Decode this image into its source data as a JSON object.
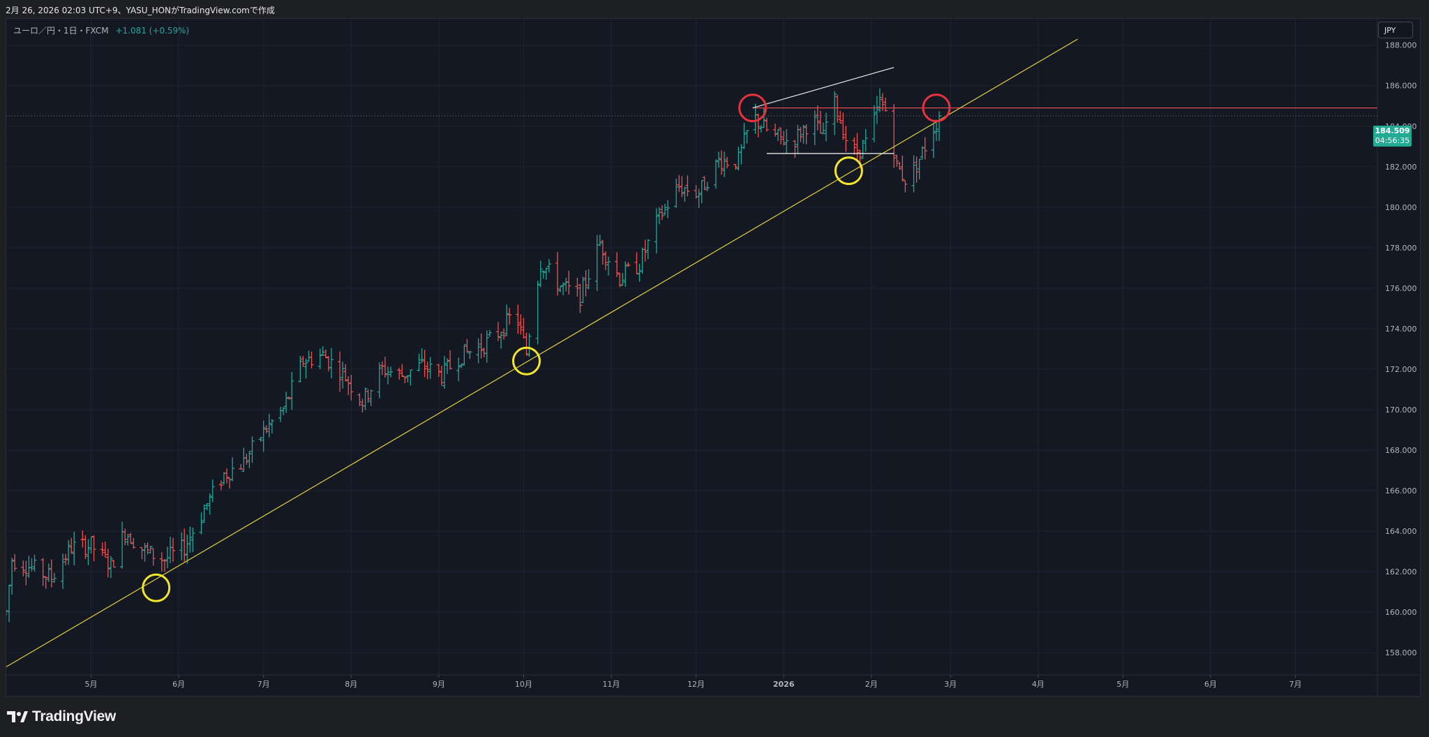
{
  "header": {
    "caption": "2月 26, 2026 02:03 UTC+9、YASU_HONがTradingView.comで作成"
  },
  "legend": {
    "symbol": "ユーロ／円・1日・FXCM",
    "change": "+1.081 (+0.59%)"
  },
  "toolbar": {
    "currency_label": "JPY"
  },
  "last_price": {
    "value": "184.509",
    "countdown": "04:56:35"
  },
  "brand": {
    "name": "TradingView"
  },
  "colors": {
    "background": "#141823",
    "up": "#26a69a",
    "down": "#ef5350",
    "trendline": "#e3d23b",
    "marker_red": "#e8323c",
    "marker_yellow": "#f2e52a",
    "resistance": "#e04a52"
  },
  "chart_data": {
    "type": "candlestick",
    "title": "",
    "timeframe": "1日",
    "y_axis": {
      "side": "right",
      "range": [
        156.9,
        189.3
      ],
      "ticks": [
        "188.000",
        "186.000",
        "184.000",
        "182.000",
        "180.000",
        "178.000",
        "176.000",
        "174.000",
        "172.000",
        "170.000",
        "168.000",
        "166.000",
        "164.000",
        "162.000",
        "160.000",
        "158.000"
      ]
    },
    "x_axis": {
      "range": [
        "2025-04-01",
        "2026-07-30"
      ],
      "ticks": [
        {
          "label": "5月",
          "date": "2025-05-01"
        },
        {
          "label": "6月",
          "date": "2025-06-01"
        },
        {
          "label": "7月",
          "date": "2025-07-01"
        },
        {
          "label": "8月",
          "date": "2025-08-01"
        },
        {
          "label": "9月",
          "date": "2025-09-01"
        },
        {
          "label": "10月",
          "date": "2025-10-01"
        },
        {
          "label": "11月",
          "date": "2025-11-01"
        },
        {
          "label": "12月",
          "date": "2025-12-01"
        },
        {
          "label": "2026",
          "date": "2026-01-01"
        },
        {
          "label": "2月",
          "date": "2026-02-01"
        },
        {
          "label": "3月",
          "date": "2026-03-01"
        },
        {
          "label": "4月",
          "date": "2026-04-01"
        },
        {
          "label": "5月",
          "date": "2026-05-01"
        },
        {
          "label": "6月",
          "date": "2026-06-01"
        },
        {
          "label": "7月",
          "date": "2026-07-01"
        }
      ]
    },
    "grid": true,
    "price_path": [
      [
        "2025-04-01",
        160.0
      ],
      [
        "2025-04-03",
        162.6
      ],
      [
        "2025-04-10",
        162.2
      ],
      [
        "2025-04-17",
        161.7
      ],
      [
        "2025-04-24",
        163.2
      ],
      [
        "2025-05-01",
        163.3
      ],
      [
        "2025-05-08",
        162.3
      ],
      [
        "2025-05-13",
        164.0
      ],
      [
        "2025-05-20",
        163.0
      ],
      [
        "2025-05-27",
        162.6
      ],
      [
        "2025-06-03",
        163.2
      ],
      [
        "2025-06-10",
        165.1
      ],
      [
        "2025-06-17",
        166.8
      ],
      [
        "2025-06-24",
        167.4
      ],
      [
        "2025-07-01",
        168.9
      ],
      [
        "2025-07-08",
        170.0
      ],
      [
        "2025-07-15",
        172.4
      ],
      [
        "2025-07-22",
        172.7
      ],
      [
        "2025-07-29",
        171.8
      ],
      [
        "2025-08-05",
        170.4
      ],
      [
        "2025-08-12",
        172.0
      ],
      [
        "2025-08-19",
        171.7
      ],
      [
        "2025-08-26",
        172.2
      ],
      [
        "2025-09-02",
        171.7
      ],
      [
        "2025-09-09",
        172.7
      ],
      [
        "2025-09-16",
        173.1
      ],
      [
        "2025-09-23",
        173.9
      ],
      [
        "2025-09-28",
        174.9
      ],
      [
        "2025-10-02",
        172.8
      ],
      [
        "2025-10-04",
        174.9
      ],
      [
        "2025-10-07",
        177.3
      ],
      [
        "2025-10-14",
        176.1
      ],
      [
        "2025-10-21",
        175.6
      ],
      [
        "2025-10-28",
        178.2
      ],
      [
        "2025-11-04",
        176.5
      ],
      [
        "2025-11-11",
        177.2
      ],
      [
        "2025-11-18",
        179.5
      ],
      [
        "2025-11-25",
        181.0
      ],
      [
        "2025-12-02",
        180.7
      ],
      [
        "2025-12-09",
        182.3
      ],
      [
        "2025-12-16",
        182.3
      ],
      [
        "2025-12-21",
        184.5
      ],
      [
        "2025-12-28",
        183.5
      ],
      [
        "2026-01-04",
        183.2
      ],
      [
        "2026-01-11",
        184.4
      ],
      [
        "2026-01-15",
        183.4
      ],
      [
        "2026-01-18",
        185.6
      ],
      [
        "2026-01-21",
        184.3
      ],
      [
        "2026-01-25",
        182.5
      ],
      [
        "2026-01-31",
        183.3
      ],
      [
        "2026-02-04",
        185.2
      ],
      [
        "2026-02-07",
        184.6
      ],
      [
        "2026-02-10",
        182.0
      ],
      [
        "2026-02-14",
        181.2
      ],
      [
        "2026-02-18",
        182.4
      ],
      [
        "2026-02-22",
        183.6
      ],
      [
        "2026-02-25",
        184.509
      ]
    ],
    "last_price": 184.509,
    "annotations": {
      "trendline": {
        "from": [
          "2025-04-01",
          157.3
        ],
        "to": [
          "2026-04-15",
          188.3
        ],
        "color": "yellow"
      },
      "resistance": {
        "price": 184.9,
        "from": "2025-12-21",
        "to": "2026-07-30",
        "color": "red"
      },
      "last_price_line": {
        "price": 184.509,
        "style": "dotted"
      },
      "support_segment": {
        "price": 182.65,
        "from": "2025-12-26",
        "to": "2026-02-09",
        "color": "white"
      },
      "upper_segment": {
        "from": [
          "2025-12-21",
          184.9
        ],
        "to": [
          "2026-02-09",
          186.9
        ],
        "color": "white"
      },
      "circles": [
        {
          "date": "2025-05-24",
          "price": 161.2,
          "color": "yellow"
        },
        {
          "date": "2025-10-02",
          "price": 172.4,
          "color": "yellow"
        },
        {
          "date": "2026-01-24",
          "price": 181.8,
          "color": "yellow"
        },
        {
          "date": "2025-12-21",
          "price": 184.9,
          "color": "red"
        },
        {
          "date": "2026-02-24",
          "price": 184.9,
          "color": "red"
        }
      ]
    }
  }
}
